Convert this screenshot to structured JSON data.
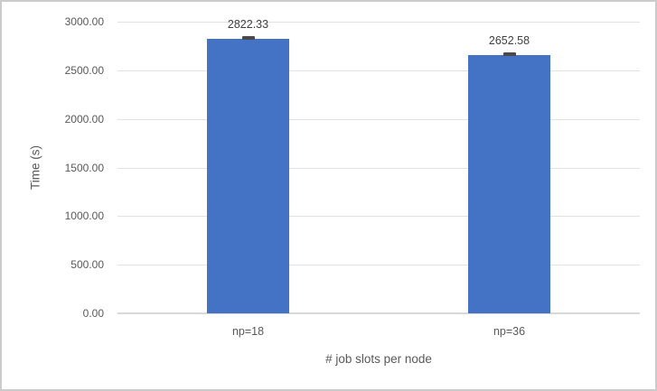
{
  "chart_data": {
    "type": "bar",
    "title": "",
    "categories": [
      "np=18",
      "np=36"
    ],
    "values": [
      2822.33,
      2652.58
    ],
    "data_labels": [
      "2822.33",
      "2652.58"
    ],
    "error_bars": true,
    "xlabel": "# job slots per node",
    "ylabel": "Time (s)",
    "ylim": [
      0,
      3000
    ],
    "ytick_step": 500,
    "ytick_labels": [
      "0.00",
      "500.00",
      "1000.00",
      "1500.00",
      "2000.00",
      "2500.00",
      "3000.00"
    ],
    "grid": true,
    "legend": false,
    "colors": {
      "bar": "#4472C4",
      "gridline": "#E2E2E2",
      "axis_line": "#D9D9D9",
      "axis_text": "#595959",
      "data_label_text": "#404040",
      "error_bar": "#4A4A4A",
      "frame_border": "#CBCBCB"
    }
  }
}
